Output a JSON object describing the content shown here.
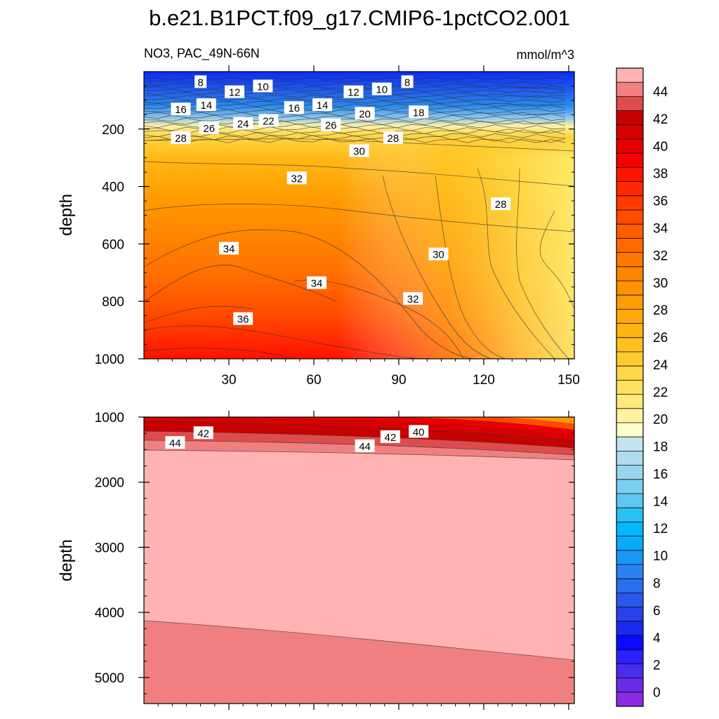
{
  "title": "b.e21.B1PCT.f09_g17.CMIP6-1pctCO2.001",
  "chart_data": [
    {
      "type": "heatmap",
      "subtype": "filled-contour",
      "panel": "upper",
      "left_label": "NO3, PAC_49N-66N",
      "right_label": "mmol/m^3",
      "xlabel": "",
      "ylabel": "depth",
      "xlim": [
        0,
        152
      ],
      "ylim": [
        1000,
        0
      ],
      "xticks": [
        30,
        60,
        90,
        120,
        150
      ],
      "yticks": [
        200,
        400,
        600,
        800,
        1000
      ],
      "contour_labels": [
        {
          "text": "8",
          "x": 20,
          "y": 35
        },
        {
          "text": "12",
          "x": 32,
          "y": 70
        },
        {
          "text": "10",
          "x": 42,
          "y": 50
        },
        {
          "text": "16",
          "x": 13,
          "y": 130
        },
        {
          "text": "14",
          "x": 22,
          "y": 115
        },
        {
          "text": "16",
          "x": 53,
          "y": 125
        },
        {
          "text": "14",
          "x": 63,
          "y": 115
        },
        {
          "text": "12",
          "x": 74,
          "y": 70
        },
        {
          "text": "10",
          "x": 84,
          "y": 60
        },
        {
          "text": "8",
          "x": 93,
          "y": 35
        },
        {
          "text": "20",
          "x": 78,
          "y": 145
        },
        {
          "text": "18",
          "x": 97,
          "y": 140
        },
        {
          "text": "24",
          "x": 35,
          "y": 180
        },
        {
          "text": "22",
          "x": 44,
          "y": 170
        },
        {
          "text": "26",
          "x": 23,
          "y": 195
        },
        {
          "text": "26",
          "x": 66,
          "y": 185
        },
        {
          "text": "28",
          "x": 13,
          "y": 230
        },
        {
          "text": "28",
          "x": 88,
          "y": 230
        },
        {
          "text": "30",
          "x": 76,
          "y": 275
        },
        {
          "text": "32",
          "x": 54,
          "y": 370
        },
        {
          "text": "28",
          "x": 126,
          "y": 460
        },
        {
          "text": "34",
          "x": 30,
          "y": 615
        },
        {
          "text": "30",
          "x": 104,
          "y": 635
        },
        {
          "text": "34",
          "x": 61,
          "y": 735
        },
        {
          "text": "32",
          "x": 95,
          "y": 790
        },
        {
          "text": "36",
          "x": 35,
          "y": 860
        }
      ]
    },
    {
      "type": "heatmap",
      "subtype": "filled-contour",
      "panel": "lower",
      "xlabel": "",
      "ylabel": "depth",
      "xlim": [
        0,
        152
      ],
      "ylim": [
        5400,
        1000
      ],
      "yticks": [
        1000,
        2000,
        3000,
        4000,
        5000
      ],
      "contour_labels": [
        {
          "text": "42",
          "x": 21,
          "y": 1240
        },
        {
          "text": "44",
          "x": 11,
          "y": 1390
        },
        {
          "text": "44",
          "x": 78,
          "y": 1440
        },
        {
          "text": "42",
          "x": 87,
          "y": 1300
        },
        {
          "text": "40",
          "x": 97,
          "y": 1220
        }
      ]
    }
  ],
  "colorbar": {
    "labels": [
      "0",
      "2",
      "4",
      "6",
      "8",
      "10",
      "12",
      "14",
      "16",
      "18",
      "20",
      "22",
      "24",
      "26",
      "28",
      "30",
      "32",
      "34",
      "36",
      "38",
      "40",
      "42",
      "44"
    ],
    "colors": [
      "#8a2be2",
      "#6a2ce6",
      "#4a2cee",
      "#2a22f8",
      "#0a0aff",
      "#1a28f0",
      "#2a40e8",
      "#2a58ea",
      "#2a6eee",
      "#2a82f2",
      "#1a95f5",
      "#0aaaf8",
      "#00b8fa",
      "#2ac0f4",
      "#5ac8f0",
      "#7ad0ee",
      "#98d6ee",
      "#b0dcee",
      "#c4e4f0",
      "#ffffcc",
      "#fff3a0",
      "#ffe97a",
      "#ffe060",
      "#ffd648",
      "#ffcc30",
      "#ffc020",
      "#ffb414",
      "#ffa80a",
      "#ff9c04",
      "#ff9000",
      "#ff8400",
      "#ff7800",
      "#ff6a00",
      "#ff5c00",
      "#ff4c00",
      "#ff3a00",
      "#ff2800",
      "#ff1400",
      "#f80000",
      "#e60000",
      "#d60000",
      "#c80000",
      "#dd4c4c",
      "#f08080",
      "#ffb3b3"
    ]
  }
}
